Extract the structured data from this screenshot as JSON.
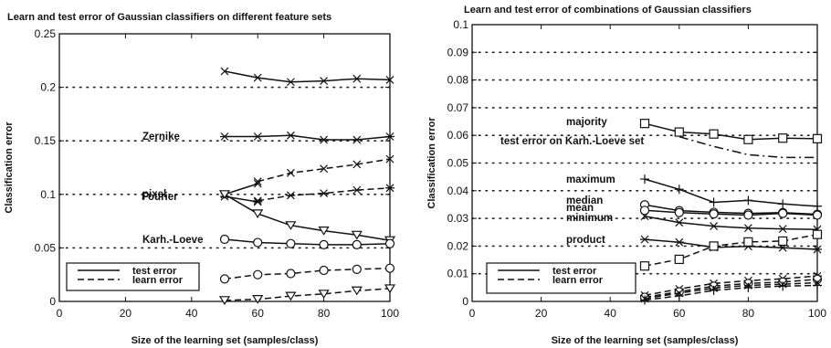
{
  "chart_data": [
    {
      "type": "line",
      "title": "Learn and test error of Gaussian classifiers on different feature sets",
      "xlabel": "Size of the learning set (samples/class)",
      "ylabel": "Classification error",
      "xlim": [
        0,
        100
      ],
      "ylim": [
        0,
        0.25
      ],
      "xticks": [
        "0",
        "20",
        "40",
        "60",
        "80",
        "100"
      ],
      "yticks": [
        "0",
        "0.05",
        "0.1",
        "0.15",
        "0.2",
        "0.25"
      ],
      "grid": "horizontal dotted",
      "legend": {
        "position": "bottom-left",
        "entries": [
          {
            "label": "test error",
            "style": "solid"
          },
          {
            "label": "learn error",
            "style": "dashed"
          }
        ]
      },
      "annotations": [
        {
          "text": "Fourier",
          "x": 37,
          "y": 0.215
        },
        {
          "text": "Zernike",
          "x": 37,
          "y": 0.153
        },
        {
          "text": "pixel",
          "x": 35,
          "y": 0.1
        },
        {
          "text": "Karh.-Loeve",
          "x": 34,
          "y": 0.058
        }
      ],
      "series": [
        {
          "marker": "x",
          "style": "solid",
          "x": [
            50,
            60,
            70,
            80,
            90,
            100
          ],
          "y": [
            0.215,
            0.209,
            0.205,
            0.206,
            0.208,
            0.207
          ]
        },
        {
          "marker": "*",
          "style": "solid",
          "x": [
            50,
            60,
            70,
            80,
            90,
            100
          ],
          "y": [
            0.154,
            0.154,
            0.155,
            0.151,
            0.151,
            0.154
          ]
        },
        {
          "marker": "x",
          "style": "solid",
          "x": [
            50,
            60
          ],
          "y": [
            0.1,
            0.11
          ]
        },
        {
          "marker": "*",
          "style": "solid",
          "x": [
            50,
            60
          ],
          "y": [
            0.098,
            0.093
          ]
        },
        {
          "marker": "v",
          "style": "solid",
          "x": [
            50,
            60,
            70,
            80,
            90,
            100
          ],
          "y": [
            0.1,
            0.082,
            0.071,
            0.066,
            0.062,
            0.057
          ]
        },
        {
          "marker": "o",
          "style": "solid",
          "x": [
            50,
            60,
            70,
            80,
            90,
            100
          ],
          "y": [
            0.058,
            0.055,
            0.054,
            0.053,
            0.053,
            0.054
          ]
        },
        {
          "marker": "x",
          "style": "dashed",
          "x": [
            60,
            70,
            80,
            90,
            100
          ],
          "y": [
            0.112,
            0.12,
            0.124,
            0.128,
            0.133
          ]
        },
        {
          "marker": "*",
          "style": "dashed",
          "x": [
            60,
            70,
            80,
            90,
            100
          ],
          "y": [
            0.094,
            0.099,
            0.101,
            0.104,
            0.106
          ]
        },
        {
          "marker": "o",
          "style": "dashed",
          "x": [
            50,
            60,
            70,
            80,
            90,
            100
          ],
          "y": [
            0.021,
            0.025,
            0.026,
            0.029,
            0.03,
            0.031
          ]
        },
        {
          "marker": "v",
          "style": "dashed",
          "x": [
            50,
            60,
            70,
            80,
            90,
            100
          ],
          "y": [
            0.001,
            0.002,
            0.005,
            0.007,
            0.01,
            0.012
          ]
        }
      ]
    },
    {
      "type": "line",
      "title": "Learn and test error of combinations of Gaussian classifiers",
      "xlabel": "Size of the learning set (samples/class)",
      "ylabel": "Classification error",
      "xlim": [
        0,
        100
      ],
      "ylim": [
        0,
        0.1
      ],
      "xticks": [
        "0",
        "20",
        "40",
        "60",
        "80",
        "100"
      ],
      "yticks": [
        "0",
        "0.01",
        "0.02",
        "0.03",
        "0.04",
        "0.05",
        "0.06",
        "0.07",
        "0.08",
        "0.09",
        "0.1"
      ],
      "grid": "horizontal dotted",
      "legend": {
        "position": "bottom-left",
        "entries": [
          {
            "label": "test error",
            "style": "solid"
          },
          {
            "label": "learn error",
            "style": "dashed"
          }
        ]
      },
      "annotations": [
        {
          "text": "majority",
          "x": 32,
          "y": 0.064
        },
        {
          "text": "test error on Karh.-Loeve set",
          "x": 6,
          "y": 0.059
        },
        {
          "text": "maximum",
          "x": 32,
          "y": 0.045
        },
        {
          "text": "median",
          "x": 32,
          "y": 0.038
        },
        {
          "text": "mean",
          "x": 32,
          "y": 0.0355
        },
        {
          "text": "minimum",
          "x": 32,
          "y": 0.031
        },
        {
          "text": "product",
          "x": 32,
          "y": 0.0225
        }
      ],
      "series": [
        {
          "marker": "square",
          "style": "solid",
          "x": [
            50,
            60,
            70,
            80,
            90,
            100
          ],
          "y": [
            0.0643,
            0.0612,
            0.0605,
            0.0585,
            0.059,
            0.0588
          ]
        },
        {
          "marker": "none",
          "style": "dashdot",
          "x": [
            60,
            70,
            80,
            90,
            100
          ],
          "y": [
            0.0595,
            0.056,
            0.053,
            0.052,
            0.052
          ]
        },
        {
          "marker": "+",
          "style": "solid",
          "x": [
            50,
            60,
            70,
            80,
            90,
            100
          ],
          "y": [
            0.0442,
            0.0405,
            0.0358,
            0.0365,
            0.0352,
            0.0344
          ]
        },
        {
          "marker": "o",
          "style": "solid",
          "x": [
            50,
            60,
            70,
            80,
            90,
            100
          ],
          "y": [
            0.0349,
            0.0328,
            0.0322,
            0.0318,
            0.0321,
            0.0315
          ]
        },
        {
          "marker": "o",
          "style": "solid",
          "x": [
            50,
            60,
            70,
            80,
            90,
            100
          ],
          "y": [
            0.0329,
            0.0321,
            0.0316,
            0.0312,
            0.0318,
            0.0312
          ]
        },
        {
          "marker": "x",
          "style": "solid",
          "x": [
            50,
            60,
            70,
            80,
            90,
            100
          ],
          "y": [
            0.0308,
            0.0285,
            0.0272,
            0.0265,
            0.0262,
            0.026
          ]
        },
        {
          "marker": "*",
          "style": "solid",
          "x": [
            50,
            60,
            70,
            80,
            90,
            100
          ],
          "y": [
            0.0224,
            0.0214,
            0.0195,
            0.0199,
            0.0194,
            0.0188
          ]
        },
        {
          "marker": "square",
          "style": "dashed",
          "x": [
            50,
            60,
            70,
            80,
            90,
            100
          ],
          "y": [
            0.0128,
            0.0152,
            0.02,
            0.0215,
            0.0218,
            0.0242
          ]
        },
        {
          "marker": "*",
          "style": "dashed",
          "x": [
            50,
            60,
            70,
            80,
            90,
            100
          ],
          "y": [
            0.0022,
            0.0045,
            0.0065,
            0.0075,
            0.0082,
            0.0092
          ]
        },
        {
          "marker": "o",
          "style": "dashed",
          "x": [
            50,
            60,
            70,
            80,
            90,
            100
          ],
          "y": [
            0.0015,
            0.0035,
            0.0055,
            0.0065,
            0.007,
            0.008
          ]
        },
        {
          "marker": "x",
          "style": "dashed",
          "x": [
            50,
            60,
            70,
            80,
            90,
            100
          ],
          "y": [
            0.001,
            0.003,
            0.0048,
            0.0058,
            0.0062,
            0.0068
          ]
        },
        {
          "marker": "+",
          "style": "dashed",
          "x": [
            50,
            60,
            70,
            80,
            90,
            100
          ],
          "y": [
            0.0005,
            0.002,
            0.004,
            0.005,
            0.0055,
            0.0058
          ]
        }
      ]
    }
  ]
}
